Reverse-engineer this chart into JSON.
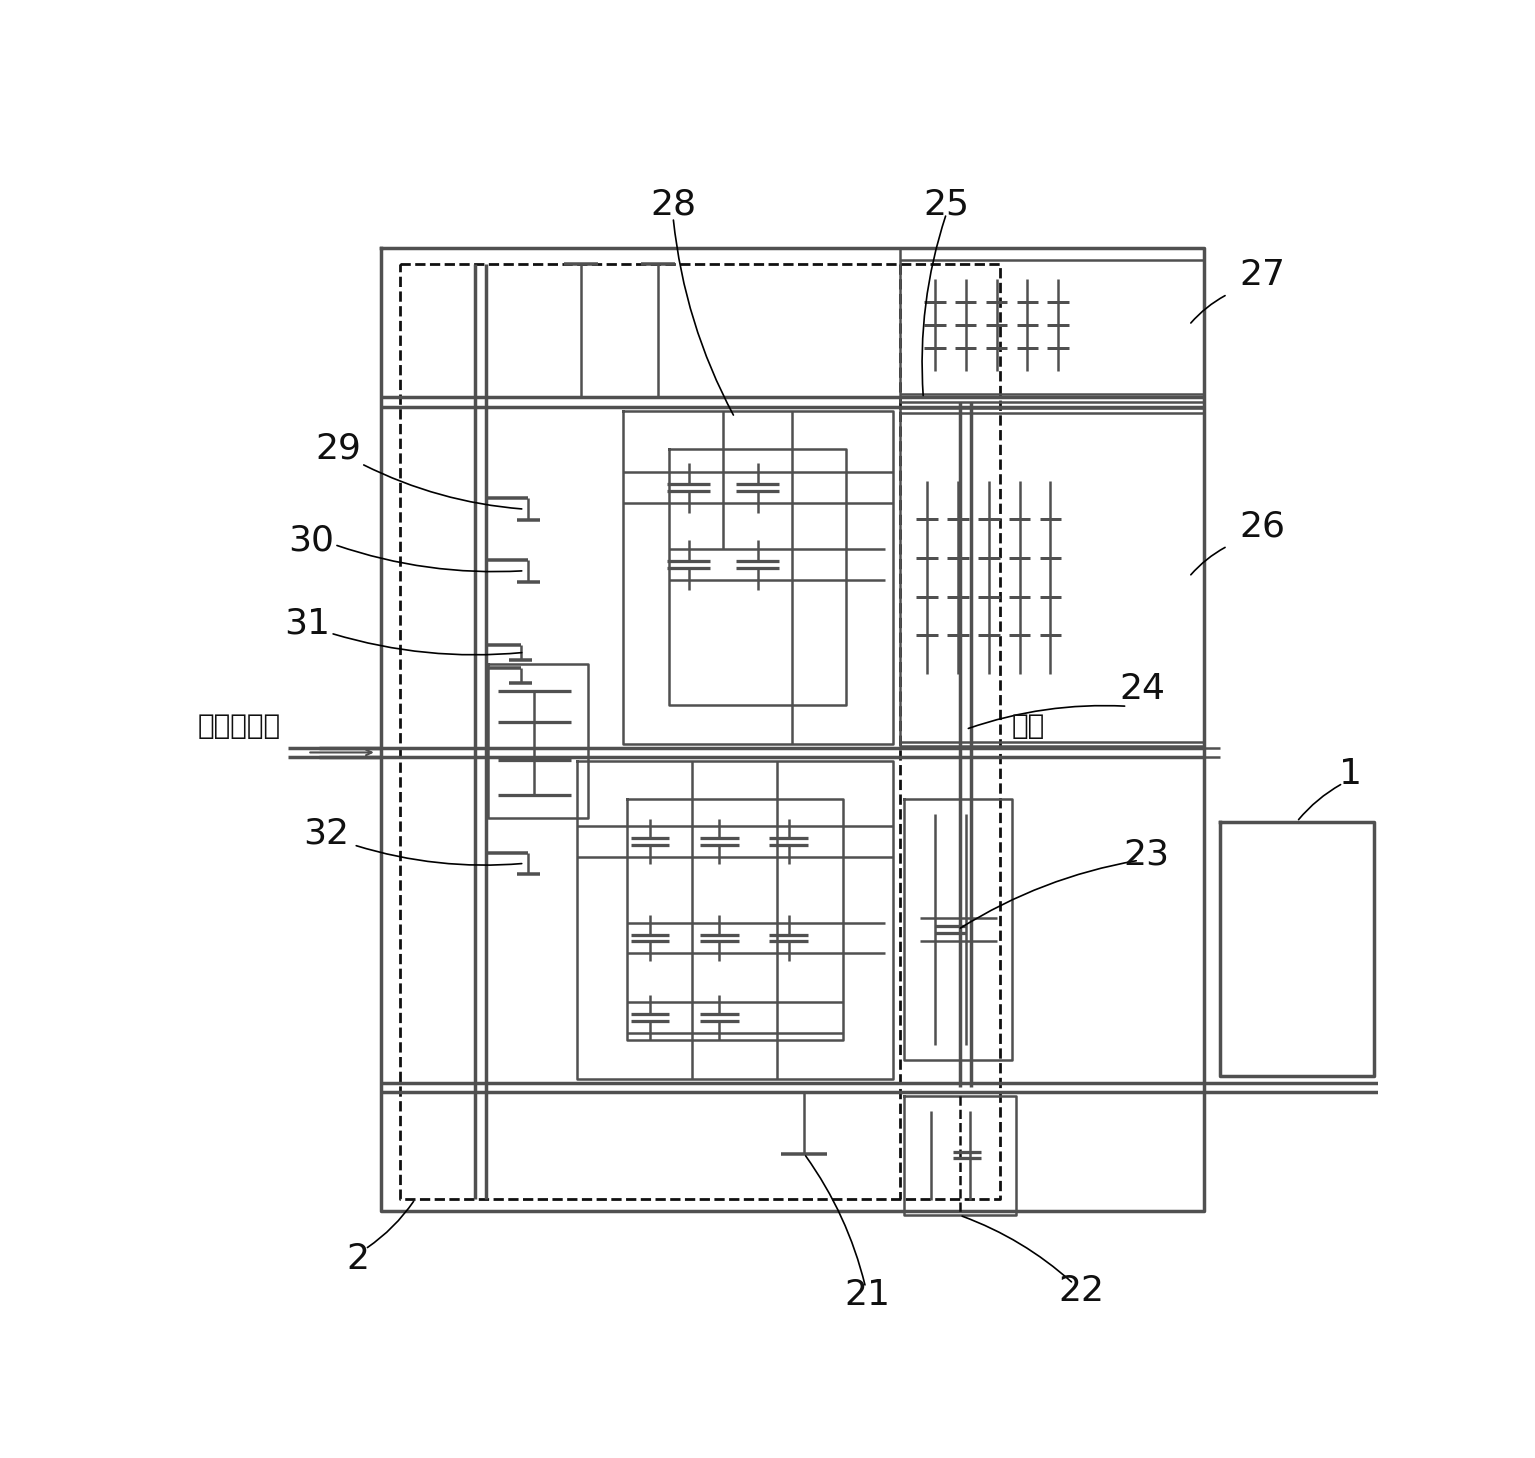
{
  "bg": "#ffffff",
  "lc": "#505050",
  "dc": "#101010",
  "tc": "#101010",
  "fig_w": 15.35,
  "fig_h": 14.58,
  "dpi": 100
}
